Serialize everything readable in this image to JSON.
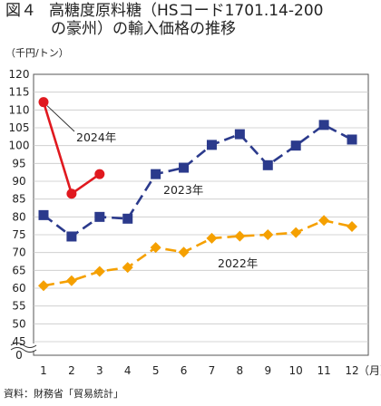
{
  "header": {
    "figure_no": "図４",
    "title_line1": "高糖度原料糖（HSコード1701.14-200",
    "title_line2": "の豪州）の輸入価格の推移"
  },
  "unit_label": "（千円/トン）",
  "source": "資料：財務省「貿易統計」",
  "chart_data": {
    "type": "line",
    "title": "図４　高糖度原料糖（HSコード1701.14-200の豪州）の輸入価格の推移",
    "xlabel": "（月）",
    "ylabel": "（千円/トン）",
    "x_unit": "（月）",
    "categories": [
      "1",
      "2",
      "3",
      "4",
      "5",
      "6",
      "7",
      "8",
      "9",
      "10",
      "11",
      "12"
    ],
    "ylim": [
      0,
      120
    ],
    "y_ticks": [
      0,
      45,
      50,
      55,
      60,
      65,
      70,
      75,
      80,
      85,
      90,
      95,
      100,
      105,
      110,
      115,
      120
    ],
    "axis_break": "between 0 and 45",
    "grid": true,
    "series": [
      {
        "name": "2022年",
        "color": "#f5a000",
        "marker": "diamond",
        "dash": "dashed",
        "values": [
          60.7,
          62.1,
          64.7,
          65.8,
          71.4,
          70.1,
          74.0,
          74.6,
          75.0,
          75.6,
          79.0,
          77.3
        ]
      },
      {
        "name": "2023年",
        "color": "#2b3a8c",
        "marker": "square",
        "dash": "dashed",
        "values": [
          80.5,
          74.5,
          80.0,
          79.5,
          92.0,
          93.8,
          100.2,
          103.2,
          94.5,
          100.0,
          105.8,
          101.7
        ]
      },
      {
        "name": "2024年",
        "color": "#e0191f",
        "marker": "circle",
        "dash": "solid",
        "values": [
          112.2,
          86.5,
          92.0,
          null,
          null,
          null,
          null,
          null,
          null,
          null,
          null,
          null
        ]
      }
    ]
  }
}
